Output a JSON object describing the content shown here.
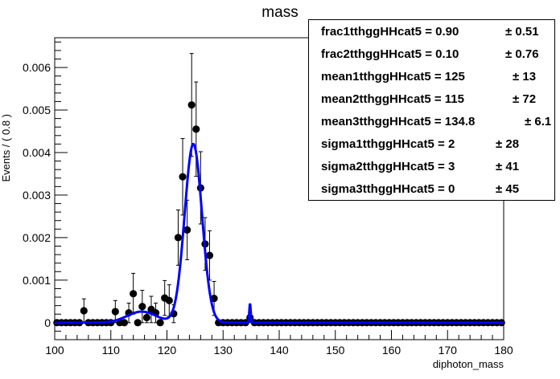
{
  "title": "mass",
  "stats": [
    {
      "label": "frac1tthggHHcat5 = ",
      "value": "0.90",
      "error": "± 0.51"
    },
    {
      "label": "frac2tthggHHcat5 = ",
      "value": "0.10",
      "error": "± 0.76"
    },
    {
      "label": "mean1tthggHHcat5 = ",
      "value": "125",
      "error": "± 13"
    },
    {
      "label": "mean2tthggHHcat5 = ",
      "value": "115",
      "error": "± 72"
    },
    {
      "label": "mean3tthggHHcat5 = ",
      "value": "134.8",
      "error": "± 6.1"
    },
    {
      "label": "sigma1tthggHHcat5 = ",
      "value": "2",
      "error": "± 28"
    },
    {
      "label": "sigma2tthggHHcat5 = ",
      "value": "3",
      "error": "± 41"
    },
    {
      "label": "sigma3tthggHHcat5 = ",
      "value": "0",
      "error": "± 45"
    }
  ],
  "chart_data": {
    "type": "scatter",
    "title": "mass",
    "xlabel": "diphoton_mass",
    "ylabel": "Events / ( 0.8 )",
    "xlim": [
      100,
      180
    ],
    "ylim": [
      -0.0004,
      0.0067
    ],
    "x_ticks": [
      "100",
      "110",
      "120",
      "130",
      "140",
      "150",
      "160",
      "170",
      "180"
    ],
    "y_ticks": [
      "0",
      "0.001",
      "0.002",
      "0.003",
      "0.004",
      "0.005",
      "0.006"
    ],
    "grid": false,
    "series": [
      {
        "kind": "data-points-with-errors",
        "color": "#000000",
        "points": [
          {
            "x": 105.2,
            "y": 0.00028,
            "err": 0.00028
          },
          {
            "x": 110.8,
            "y": 0.00026,
            "err": 0.00026
          },
          {
            "x": 113.2,
            "y": 0.00023,
            "err": 0.00023
          },
          {
            "x": 114.0,
            "y": 0.00068,
            "err": 0.00048
          },
          {
            "x": 115.6,
            "y": 0.00038,
            "err": 0.00038
          },
          {
            "x": 116.4,
            "y": 0.00012,
            "err": 0.00012
          },
          {
            "x": 117.2,
            "y": 0.00031,
            "err": 0.00031
          },
          {
            "x": 118.0,
            "y": 0.00023,
            "err": 0.00023
          },
          {
            "x": 119.6,
            "y": 0.00058,
            "err": 0.00041
          },
          {
            "x": 120.4,
            "y": 0.00052,
            "err": 0.00037
          },
          {
            "x": 121.2,
            "y": 0.00021,
            "err": 0.00021
          },
          {
            "x": 122.0,
            "y": 0.002,
            "err": 0.00065
          },
          {
            "x": 122.8,
            "y": 0.00343,
            "err": 0.0009
          },
          {
            "x": 123.6,
            "y": 0.00218,
            "err": 0.0007
          },
          {
            "x": 124.4,
            "y": 0.00512,
            "err": 0.00121
          },
          {
            "x": 125.2,
            "y": 0.00455,
            "err": 0.00111
          },
          {
            "x": 126.0,
            "y": 0.00317,
            "err": 0.00085
          },
          {
            "x": 126.8,
            "y": 0.00185,
            "err": 0.00062
          },
          {
            "x": 127.6,
            "y": 0.00158,
            "err": 0.00058
          },
          {
            "x": 128.4,
            "y": 0.00057,
            "err": 0.0004
          },
          {
            "x": 134.8,
            "y": 0.00012,
            "err": 0.00012
          }
        ],
        "zero_points_x_start": 100.4,
        "zero_points_step": 0.8
      },
      {
        "kind": "fit-curve",
        "color": "#0000ff",
        "peak_x": 124.7,
        "peak_y": 0.0042
      }
    ]
  }
}
